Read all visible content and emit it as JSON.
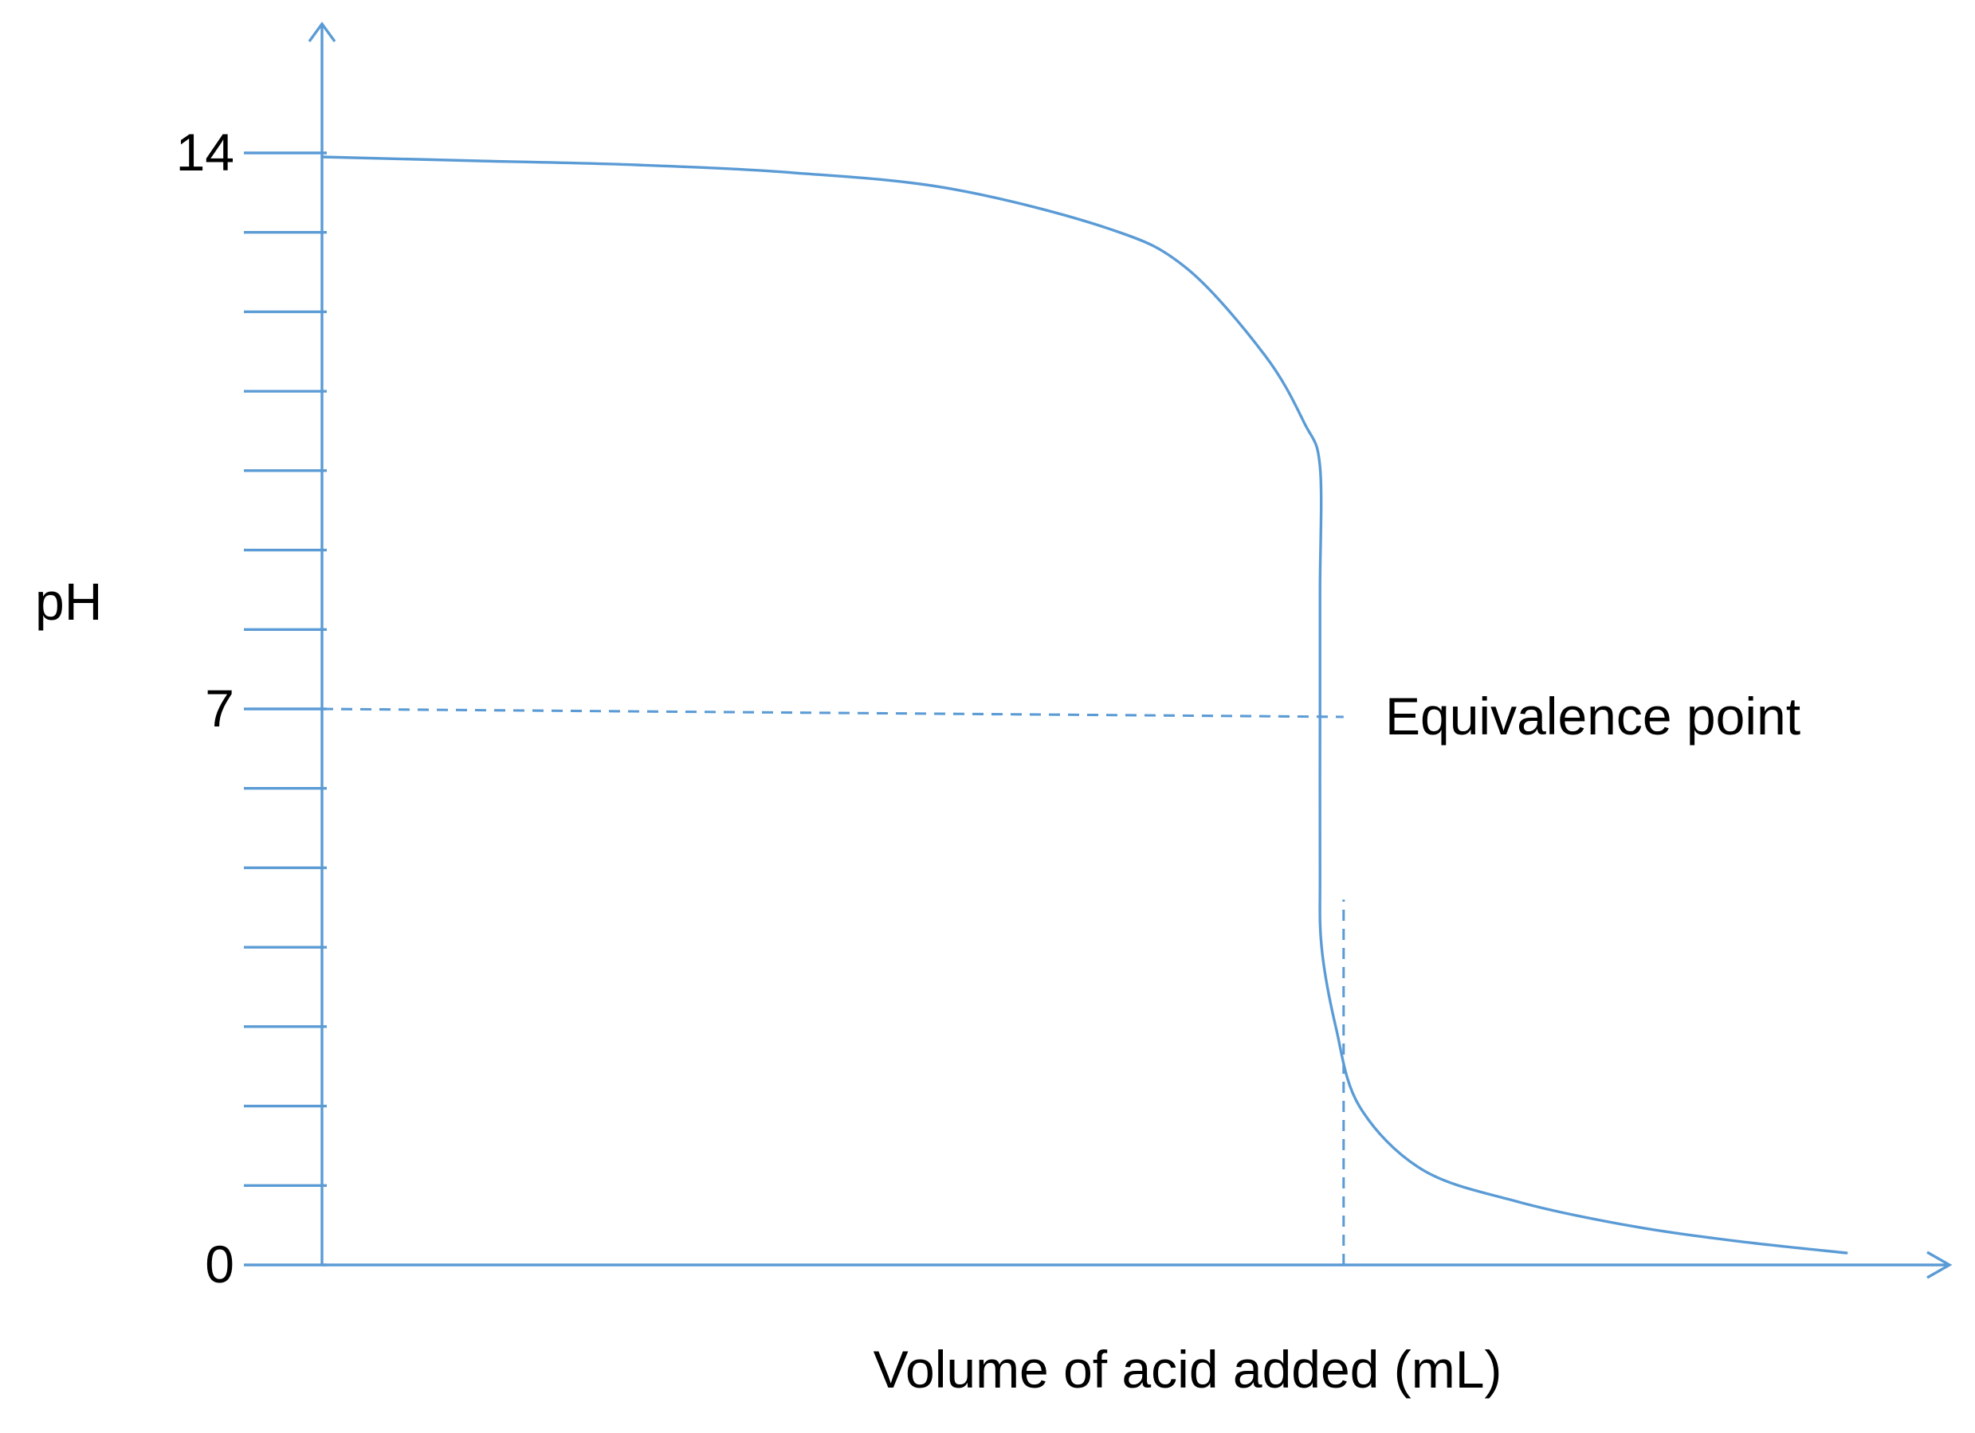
{
  "chart_data": {
    "type": "line",
    "title": "",
    "xlabel": "Volume of acid added (mL)",
    "ylabel": "pH",
    "ylim": [
      0,
      14
    ],
    "xlim": [
      0,
      100
    ],
    "y_ticks": [
      0,
      1,
      2,
      3,
      4,
      5,
      6,
      7,
      8,
      9,
      10,
      11,
      12,
      13,
      14
    ],
    "y_tick_labels": [
      {
        "value": 14,
        "label": "14"
      },
      {
        "value": 7,
        "label": "7"
      },
      {
        "value": 0,
        "label": "0"
      }
    ],
    "grid": false,
    "annotations": [
      {
        "text": "Equivalence point",
        "x": 65,
        "y": 7
      }
    ],
    "reference_lines": [
      {
        "name": "ph-7-guide",
        "x": [
          0,
          65
        ],
        "y": [
          7,
          6.9
        ],
        "style": "dashed"
      },
      {
        "name": "equivalence-volume-guide",
        "x": [
          65,
          65
        ],
        "y": [
          0,
          4.6
        ],
        "style": "dashed"
      }
    ],
    "series": [
      {
        "name": "titration curve",
        "points": [
          [
            0,
            13.95
          ],
          [
            10,
            13.9
          ],
          [
            20,
            13.85
          ],
          [
            30,
            13.75
          ],
          [
            40,
            13.55
          ],
          [
            50,
            13.05
          ],
          [
            55,
            12.55
          ],
          [
            60,
            11.45
          ],
          [
            62.5,
            10.6
          ],
          [
            63.5,
            10.05
          ],
          [
            63.5,
            8.5
          ],
          [
            63.5,
            7
          ],
          [
            63.5,
            5
          ],
          [
            63.6,
            4.0
          ],
          [
            64.5,
            3.0
          ],
          [
            66,
            2.0
          ],
          [
            70,
            1.2
          ],
          [
            76,
            0.8
          ],
          [
            83,
            0.5
          ],
          [
            90,
            0.3
          ],
          [
            97,
            0.15
          ]
        ]
      }
    ],
    "colors": {
      "line": "#5b9bd5"
    }
  }
}
